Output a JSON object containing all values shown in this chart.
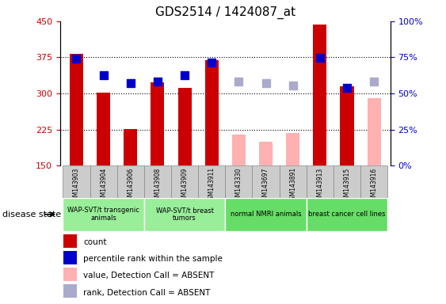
{
  "title": "GDS2514 / 1424087_at",
  "samples": [
    "GSM143903",
    "GSM143904",
    "GSM143906",
    "GSM143908",
    "GSM143909",
    "GSM143911",
    "GSM143330",
    "GSM143697",
    "GSM143891",
    "GSM143913",
    "GSM143915",
    "GSM143916"
  ],
  "bar_values": [
    382,
    302,
    226,
    323,
    312,
    370,
    null,
    null,
    null,
    443,
    315,
    null
  ],
  "bar_values_absent": [
    null,
    null,
    null,
    null,
    null,
    null,
    215,
    200,
    218,
    null,
    null,
    290
  ],
  "rank_values": [
    372,
    338,
    322,
    324,
    338,
    364,
    null,
    null,
    null,
    374,
    312,
    null
  ],
  "rank_values_absent": [
    null,
    null,
    null,
    null,
    null,
    null,
    325,
    322,
    316,
    null,
    null,
    325
  ],
  "ylim_left": [
    150,
    450
  ],
  "yticks_left": [
    150,
    225,
    300,
    375,
    450
  ],
  "ylim_right": [
    0,
    100
  ],
  "yticks_right": [
    0,
    25,
    50,
    75,
    100
  ],
  "ytick_labels_right": [
    "0%",
    "25%",
    "50%",
    "75%",
    "100%"
  ],
  "bar_color": "#cc0000",
  "bar_absent_color": "#ffb0b0",
  "rank_color": "#0000cc",
  "rank_absent_color": "#aaaacc",
  "group_ranges": [
    {
      "start": 0,
      "end": 2,
      "label1": "WAP-SVT/t transgenic",
      "label2": "animals",
      "color": "#99ee99"
    },
    {
      "start": 3,
      "end": 5,
      "label1": "WAP-SVT/t breast",
      "label2": "tumors",
      "color": "#99ee99"
    },
    {
      "start": 6,
      "end": 8,
      "label1": "normal NMRI animals",
      "label2": "",
      "color": "#66dd66"
    },
    {
      "start": 9,
      "end": 11,
      "label1": "breast cancer cell lines",
      "label2": "",
      "color": "#66dd66"
    }
  ],
  "disease_state_label": "disease state",
  "legend_labels": [
    "count",
    "percentile rank within the sample",
    "value, Detection Call = ABSENT",
    "rank, Detection Call = ABSENT"
  ],
  "legend_colors": [
    "#cc0000",
    "#0000cc",
    "#ffb0b0",
    "#aaaacc"
  ],
  "bar_width": 0.5,
  "marker_size": 7,
  "bg_color": "#ffffff",
  "tick_color_left": "#cc0000",
  "tick_color_right": "#0000cc",
  "sample_box_color": "#cccccc",
  "sample_box_edge": "#888888"
}
